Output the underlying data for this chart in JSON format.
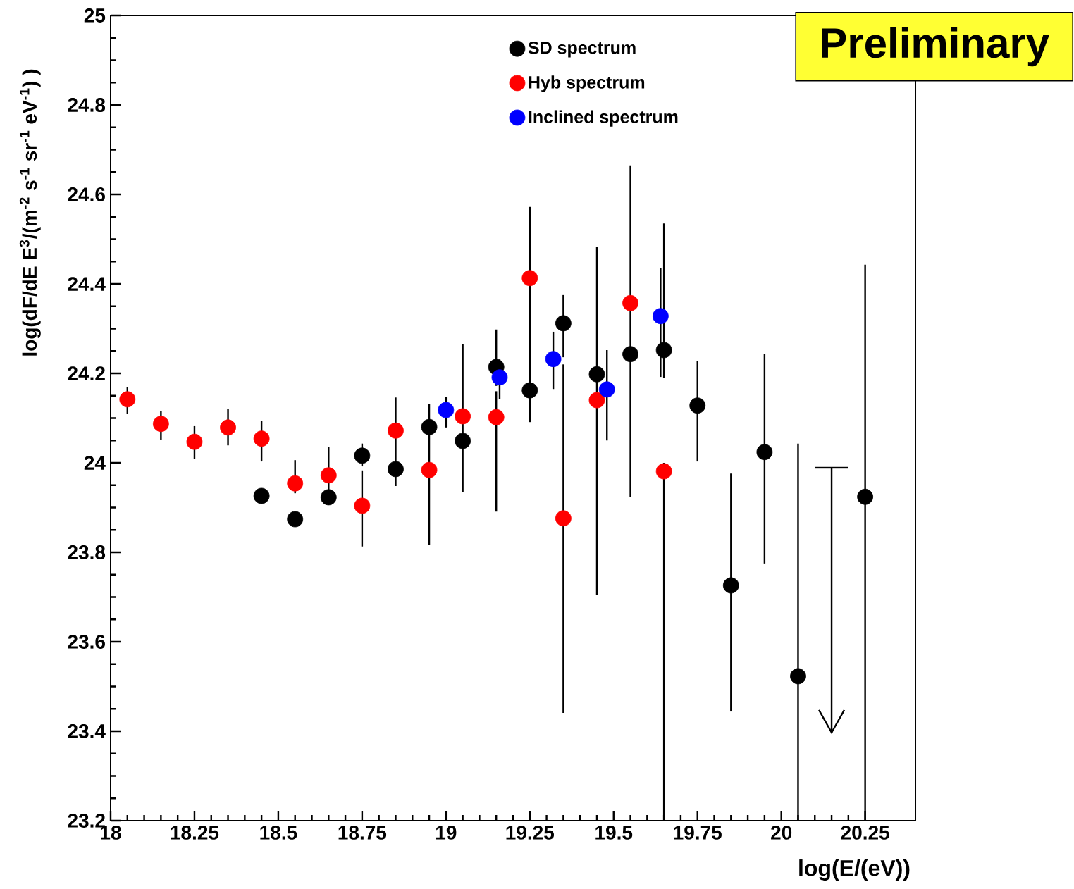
{
  "chart_data": {
    "type": "scatter",
    "legend": "top",
    "xlabel": "log(E/(eV))",
    "ylabel": "log(dF/dE E$^{3}$/(m$^{-2}$ s$^{-1}$ sr$^{-1}$ eV$^{-1}$) )",
    "annotations": [
      "Preliminary"
    ],
    "xlim": [
      18,
      20.4
    ],
    "ylim": [
      23.2,
      25
    ],
    "xticks": [
      18,
      18.25,
      18.5,
      18.75,
      19,
      19.25,
      19.5,
      19.75,
      20,
      20.25
    ],
    "yticks": [
      23.2,
      23.4,
      23.6,
      23.8,
      24,
      24.2,
      24.4,
      24.6,
      24.8,
      25
    ],
    "series": [
      {
        "name": "SD spectrum",
        "marker": "circle",
        "color": "#000000",
        "x": [
          18.45,
          18.55,
          18.65,
          18.75,
          18.85,
          18.95,
          19.05,
          19.15,
          19.25,
          19.35,
          19.45,
          19.55,
          19.65,
          19.75,
          19.85,
          19.95,
          20.05,
          20.25
        ],
        "values": [
          23.926,
          23.874,
          23.923,
          24.016,
          23.986,
          24.08,
          24.049,
          24.214,
          24.162,
          24.312,
          24.198,
          24.243,
          24.252,
          24.128,
          23.726,
          24.024,
          23.523,
          23.924
        ],
        "errors": [
          null,
          null,
          null,
          [
            23.992,
            24.043
          ],
          null,
          null,
          null,
          [
            24.172,
            24.298
          ],
          null,
          [
            24.236,
            24.375
          ],
          [
            23.704,
            24.483
          ],
          [
            23.923,
            24.665
          ],
          [
            24.19,
            24.535
          ],
          [
            24.003,
            24.227
          ],
          [
            23.444,
            23.976
          ],
          [
            23.775,
            24.244
          ],
          [
            23.2,
            24.043
          ],
          [
            23.2,
            24.443
          ]
        ]
      },
      {
        "name": "Hyb spectrum",
        "marker": "circle",
        "color": "#ff0000",
        "x": [
          18.05,
          18.15,
          18.25,
          18.35,
          18.45,
          18.55,
          18.65,
          18.75,
          18.85,
          18.95,
          19.05,
          19.15,
          19.25,
          19.35,
          19.45,
          19.55,
          19.65
        ],
        "values": [
          24.142,
          24.087,
          24.047,
          24.079,
          24.054,
          23.954,
          23.972,
          23.904,
          24.072,
          23.984,
          24.104,
          24.102,
          24.413,
          23.876,
          24.14,
          24.357,
          23.981
        ],
        "errors": [
          [
            24.11,
            24.17
          ],
          [
            24.052,
            24.115
          ],
          [
            24.009,
            24.082
          ],
          [
            24.039,
            24.12
          ],
          [
            24.003,
            24.094
          ],
          [
            23.932,
            24.006
          ],
          [
            23.909,
            24.035
          ],
          [
            23.813,
            23.983
          ],
          [
            23.948,
            24.146
          ],
          [
            23.817,
            24.132
          ],
          [
            23.934,
            24.265
          ],
          [
            23.891,
            24.16
          ],
          [
            24.091,
            24.572
          ],
          [
            23.441,
            24.22
          ],
          null,
          null,
          [
            23.2,
            24.0
          ]
        ]
      },
      {
        "name": "Inclined spectrum",
        "marker": "circle",
        "color": "#0000ff",
        "x": [
          19.0,
          19.16,
          19.32,
          19.48,
          19.64
        ],
        "values": [
          24.118,
          24.191,
          24.232,
          24.164,
          24.328
        ],
        "errors": [
          [
            24.079,
            24.148
          ],
          [
            24.142,
            24.231
          ],
          [
            24.165,
            24.293
          ],
          [
            24.05,
            24.252
          ],
          [
            24.192,
            24.435
          ]
        ]
      },
      {
        "type": "line",
        "marker": "none",
        "color": "#000000",
        "x": [
          20.15,
          20.15
        ],
        "values": [
          23.989,
          23.397
        ],
        "xerrors": [
          0.05,
          null
        ]
      }
    ]
  }
}
